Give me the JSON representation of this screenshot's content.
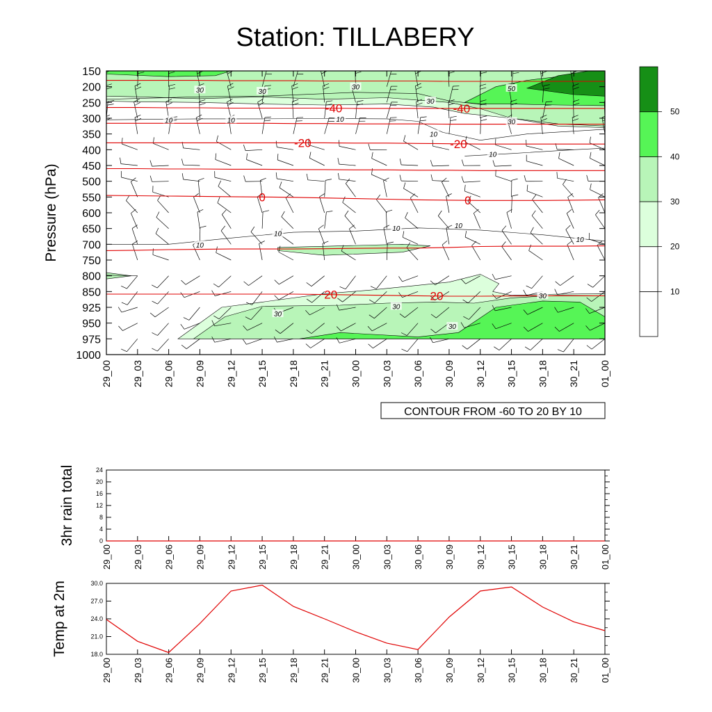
{
  "title": "Station: TILLABERY",
  "colors": {
    "shade_20_30": "#dcffdc",
    "shade_30_40": "#b8f5b8",
    "shade_40_50": "#56f556",
    "shade_50_plus": "#168f16",
    "temp_contour": "#e00000",
    "rh_contour": "#000000",
    "wind_barb": "#000000"
  },
  "times": [
    "29_00",
    "29_03",
    "29_06",
    "29_09",
    "29_12",
    "29_15",
    "29_18",
    "29_21",
    "30_00",
    "30_03",
    "30_06",
    "30_09",
    "30_12",
    "30_15",
    "30_18",
    "30_21",
    "01_00"
  ],
  "main_panel": {
    "ylabel": "Pressure (hPa)",
    "pressure_levels": [
      150,
      200,
      250,
      300,
      350,
      400,
      450,
      500,
      550,
      600,
      650,
      700,
      750,
      800,
      850,
      925,
      950,
      975,
      1000
    ],
    "ytick_labels": [
      "150",
      "200",
      "250",
      "300",
      "350",
      "400",
      "450",
      "500",
      "550",
      "600",
      "650",
      "700",
      "750",
      "800",
      "850",
      "925",
      "950",
      "975",
      "1000"
    ],
    "info_label": "CONTOUR FROM -60 TO 20 BY 10",
    "colorbar": {
      "levels": [
        10,
        20,
        30,
        40,
        50
      ],
      "labels": [
        "10",
        "20",
        "30",
        "40",
        "50"
      ],
      "fill_colors": [
        "#ffffff",
        "#ffffff",
        "#dcffdc",
        "#b8f5b8",
        "#56f556",
        "#168f16"
      ]
    },
    "temperature_contours": [
      {
        "value": -40,
        "label": "-40",
        "pressure_by_time": [
          266,
          266,
          267,
          267,
          268,
          268,
          268,
          268,
          269,
          269,
          269,
          269,
          269,
          269,
          269,
          269,
          269
        ]
      },
      {
        "value": -20,
        "label": "-20",
        "pressure_by_time": [
          378,
          378,
          378,
          378,
          378,
          378,
          378,
          378,
          379,
          379,
          380,
          381,
          382,
          382,
          382,
          382,
          382
        ]
      },
      {
        "value": 0,
        "label": "0",
        "pressure_by_time": [
          545,
          546,
          547,
          548,
          549,
          550,
          551,
          553,
          555,
          557,
          559,
          560,
          561,
          561,
          561,
          560,
          559
        ]
      },
      {
        "value": 20,
        "label": "20",
        "pressure_by_time": [
          862,
          862,
          862,
          862,
          862,
          862,
          862,
          864,
          866,
          868,
          870,
          872,
          872,
          871,
          870,
          870,
          870
        ]
      }
    ],
    "temperature_lines_no_label": [
      {
        "pressure_by_time": [
          180,
          180,
          180,
          180,
          181,
          181,
          181,
          182,
          182,
          182,
          182,
          183,
          183,
          183,
          183,
          183,
          183
        ]
      },
      {
        "pressure_by_time": [
          316,
          316,
          316,
          316,
          316,
          316,
          317,
          317,
          318,
          318,
          318,
          319,
          319,
          319,
          319,
          319,
          319
        ]
      },
      {
        "pressure_by_time": [
          460,
          460,
          461,
          461,
          462,
          462,
          463,
          463,
          464,
          464,
          465,
          465,
          466,
          466,
          466,
          466,
          466
        ]
      },
      {
        "pressure_by_time": [
          720,
          719,
          717,
          716,
          715,
          715,
          715,
          714,
          713,
          712,
          712,
          710,
          707,
          706,
          706,
          706,
          705
        ]
      }
    ],
    "rh_contour_labels": [
      {
        "text": "30",
        "t_index": 3.0,
        "pressure": 210
      },
      {
        "text": "30",
        "t_index": 5.0,
        "pressure": 214
      },
      {
        "text": "30",
        "t_index": 8.0,
        "pressure": 200
      },
      {
        "text": "30",
        "t_index": 10.4,
        "pressure": 245
      },
      {
        "text": "50",
        "t_index": 13.0,
        "pressure": 205
      },
      {
        "text": "30",
        "t_index": 13.0,
        "pressure": 310
      },
      {
        "text": "10",
        "t_index": 2.0,
        "pressure": 305
      },
      {
        "text": "10",
        "t_index": 4.0,
        "pressure": 305
      },
      {
        "text": "10",
        "t_index": 7.5,
        "pressure": 302
      },
      {
        "text": "10",
        "t_index": 10.5,
        "pressure": 350
      },
      {
        "text": "10",
        "t_index": 12.4,
        "pressure": 414
      },
      {
        "text": "10",
        "t_index": 5.5,
        "pressure": 665
      },
      {
        "text": "10",
        "t_index": 9.3,
        "pressure": 648
      },
      {
        "text": "10",
        "t_index": 11.3,
        "pressure": 640
      },
      {
        "text": "10",
        "t_index": 3.0,
        "pressure": 702
      },
      {
        "text": "10",
        "t_index": 15.2,
        "pressure": 684
      },
      {
        "text": "30",
        "t_index": 5.5,
        "pressure": 935
      },
      {
        "text": "30",
        "t_index": 9.3,
        "pressure": 920
      },
      {
        "text": "30",
        "t_index": 11.1,
        "pressure": 955
      },
      {
        "text": "30",
        "t_index": 14.0,
        "pressure": 868
      }
    ]
  },
  "rain_panel": {
    "ylabel": "3hr rain total",
    "ytick_labels": [
      "0",
      "4",
      "8",
      "12",
      "16",
      "20",
      "24"
    ],
    "ylim": [
      0,
      24
    ]
  },
  "temp_panel": {
    "ylabel": "Temp at 2m",
    "ytick_labels": [
      "18.0",
      "21.0",
      "24.0",
      "27.0",
      "30.0"
    ],
    "ylim": [
      18.0,
      30.0
    ]
  },
  "chart_data": [
    {
      "type": "heatmap",
      "title": "Station: TILLABERY",
      "ylabel": "Pressure (hPa)",
      "x": [
        "29_00",
        "29_03",
        "29_06",
        "29_09",
        "29_12",
        "29_15",
        "29_18",
        "29_21",
        "30_00",
        "30_03",
        "30_06",
        "30_09",
        "30_12",
        "30_15",
        "30_18",
        "30_21",
        "01_00"
      ],
      "y_levels": [
        150,
        200,
        250,
        300,
        350,
        400,
        450,
        500,
        550,
        600,
        650,
        700,
        750,
        800,
        850,
        925,
        950,
        975,
        1000
      ],
      "shading_levels": [
        10,
        20,
        30,
        40,
        50
      ],
      "temperature_contour_levels": [
        -40,
        -20,
        0,
        20
      ],
      "info_label": "CONTOUR FROM -60 TO 20 BY 10"
    },
    {
      "type": "line",
      "ylabel": "3hr rain total",
      "x": [
        "29_00",
        "29_03",
        "29_06",
        "29_09",
        "29_12",
        "29_15",
        "29_18",
        "29_21",
        "30_00",
        "30_03",
        "30_06",
        "30_09",
        "30_12",
        "30_15",
        "30_18",
        "30_21",
        "01_00"
      ],
      "values": [
        0,
        0,
        0,
        0,
        0,
        0,
        0,
        0,
        0,
        0,
        0,
        0,
        0,
        0,
        0,
        0,
        0
      ],
      "ylim": [
        0,
        24
      ]
    },
    {
      "type": "line",
      "ylabel": "Temp at 2m",
      "x": [
        "29_00",
        "29_03",
        "29_06",
        "29_09",
        "29_12",
        "29_15",
        "29_18",
        "29_21",
        "30_00",
        "30_03",
        "30_06",
        "30_09",
        "30_12",
        "30_15",
        "30_18",
        "30_21",
        "01_00"
      ],
      "values": [
        23.9,
        20.2,
        18.3,
        23.2,
        28.7,
        29.7,
        26.1,
        24.0,
        21.8,
        19.9,
        18.8,
        24.3,
        28.7,
        29.4,
        26.0,
        23.5,
        22.0
      ],
      "ylim": [
        18.0,
        30.0
      ]
    }
  ]
}
